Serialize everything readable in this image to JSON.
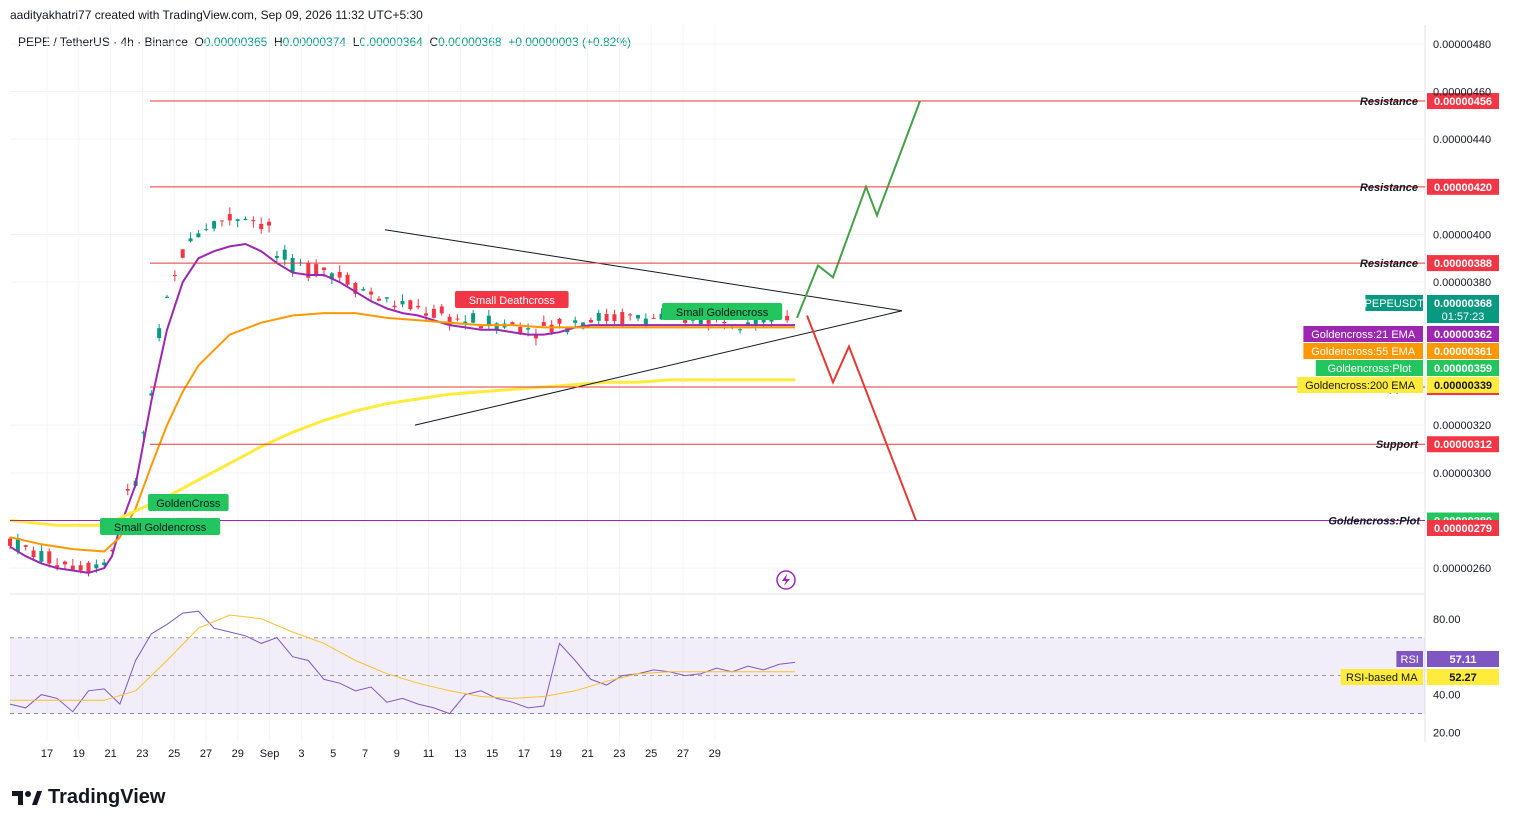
{
  "header": {
    "created_by": "aadityakhatri77 created with TradingView.com, Sep 09, 2026 11:32 UTC+5:30",
    "symbol": "PEPE / TetherUS · 4h · Binance",
    "open_label": "O",
    "open": "0.00000365",
    "high_label": "H",
    "high": "0.00000374",
    "low_label": "L",
    "low": "0.00000364",
    "close_label": "C",
    "close": "0.00000368",
    "change": "+0.00000003 (+0.82%)"
  },
  "brand": {
    "name": "TradingView",
    "icon": "tradingview-logo-icon"
  },
  "colors": {
    "up": "#089981",
    "down": "#f23645",
    "ema21": "#9c27b0",
    "ema55": "#ff9800",
    "ema200": "#ffeb3b",
    "resistance": "#e53935",
    "support": "#e53935",
    "plot": "#22c55e",
    "rsi": "#7e57c2",
    "rsi_ma": "#fbc02d",
    "tag_red": "#f23645"
  },
  "chart_data": [
    {
      "type": "line",
      "title": "",
      "ylim": [
        2.5e-06,
        4.879e-06
      ],
      "y_ticks": [
        "0.00000480",
        "0.00000460",
        "0.00000440",
        "0.00000400",
        "0.00000380",
        "0.00000320",
        "0.00000300",
        "0.00000260"
      ],
      "x_ticks": [
        "17",
        "19",
        "21",
        "23",
        "25",
        "27",
        "29",
        "Sep",
        "3",
        "5",
        "7",
        "9",
        "11",
        "13",
        "15",
        "17",
        "19",
        "21",
        "23",
        "25",
        "27",
        "29"
      ],
      "series": [
        {
          "name": "Goldencross:21 EMA",
          "line": "ema21",
          "x": [
            0,
            1,
            2,
            3,
            4,
            5,
            6,
            6.5,
            7,
            8,
            9,
            10,
            11,
            12,
            13,
            14,
            15,
            16,
            17,
            18,
            19,
            20,
            21,
            22,
            23,
            24,
            25,
            26,
            27,
            28,
            29,
            30,
            31,
            32,
            33,
            34,
            35,
            36,
            37,
            38,
            39,
            40,
            41,
            42,
            43,
            44,
            45,
            46,
            47,
            48,
            49,
            50
          ],
          "y": [
            2.69e-06,
            2.65e-06,
            2.62e-06,
            2.6e-06,
            2.59e-06,
            2.58e-06,
            2.6e-06,
            2.65e-06,
            2.77e-06,
            2.95e-06,
            3.3e-06,
            3.6e-06,
            3.8e-06,
            3.9e-06,
            3.93e-06,
            3.95e-06,
            3.96e-06,
            3.93e-06,
            3.88e-06,
            3.84e-06,
            3.83e-06,
            3.83e-06,
            3.8e-06,
            3.76e-06,
            3.72e-06,
            3.69e-06,
            3.67e-06,
            3.66e-06,
            3.64e-06,
            3.62e-06,
            3.61e-06,
            3.6e-06,
            3.6e-06,
            3.59e-06,
            3.58e-06,
            3.58e-06,
            3.59e-06,
            3.61e-06,
            3.62e-06,
            3.62e-06,
            3.62e-06,
            3.62e-06,
            3.62e-06,
            3.62e-06,
            3.62e-06,
            3.62e-06,
            3.62e-06,
            3.62e-06,
            3.62e-06,
            3.62e-06,
            3.62e-06,
            3.62e-06
          ]
        },
        {
          "name": "Goldencross:55 EMA",
          "line": "ema55",
          "x": [
            0,
            2,
            4,
            6,
            7,
            8,
            9,
            10,
            11,
            12,
            14,
            16,
            18,
            20,
            22,
            24,
            26,
            28,
            30,
            32,
            34,
            36,
            38,
            40,
            42,
            44,
            46,
            48,
            50
          ],
          "y": [
            2.73e-06,
            2.7e-06,
            2.68e-06,
            2.67e-06,
            2.73e-06,
            2.85e-06,
            3.03e-06,
            3.2e-06,
            3.34e-06,
            3.45e-06,
            3.58e-06,
            3.63e-06,
            3.66e-06,
            3.67e-06,
            3.67e-06,
            3.65e-06,
            3.64e-06,
            3.63e-06,
            3.62e-06,
            3.62e-06,
            3.61e-06,
            3.61e-06,
            3.61e-06,
            3.61e-06,
            3.61e-06,
            3.61e-06,
            3.61e-06,
            3.61e-06,
            3.61e-06
          ]
        },
        {
          "name": "Goldencross:200 EMA",
          "line": "ema200",
          "x": [
            0,
            3,
            6,
            8,
            10,
            12,
            14,
            16,
            18,
            20,
            22,
            24,
            26,
            28,
            30,
            32,
            34,
            36,
            38,
            40,
            42,
            44,
            46,
            48,
            50
          ],
          "y": [
            2.8e-06,
            2.78e-06,
            2.78e-06,
            2.84e-06,
            2.9e-06,
            2.97e-06,
            3.04e-06,
            3.11e-06,
            3.17e-06,
            3.22e-06,
            3.26e-06,
            3.29e-06,
            3.31e-06,
            3.33e-06,
            3.34e-06,
            3.35e-06,
            3.36e-06,
            3.37e-06,
            3.38e-06,
            3.38e-06,
            3.39e-06,
            3.39e-06,
            3.39e-06,
            3.39e-06,
            3.39e-06
          ]
        }
      ],
      "levels": [
        {
          "label": "Resistance",
          "value": "0.00000456",
          "y": 4.56e-06,
          "kind": "resistance"
        },
        {
          "label": "Resistance",
          "value": "0.00000420",
          "y": 4.2e-06,
          "kind": "resistance"
        },
        {
          "label": "Resistance",
          "value": "0.00000388",
          "y": 3.88e-06,
          "kind": "resistance"
        },
        {
          "label": "Support",
          "value": "0.00000336",
          "y": 3.36e-06,
          "kind": "support"
        },
        {
          "label": "Support",
          "value": "0.00000312",
          "y": 3.12e-06,
          "kind": "support"
        },
        {
          "label": "Goldencross:Plot",
          "value": "0.00000280",
          "y": 2.8e-06,
          "kind": "plot"
        }
      ],
      "axis_tags": [
        {
          "label": "PEPEUSDT",
          "value": "0.00000368",
          "sub": "01:57:23",
          "color": "#089981"
        },
        {
          "label": "Goldencross:21 EMA",
          "value": "0.00000362",
          "color": "#9c27b0"
        },
        {
          "label": "Goldencross:55 EMA",
          "value": "0.00000361",
          "color": "#ff9800"
        },
        {
          "label": "Goldencross:Plot",
          "value": "0.00000359",
          "color": "#22c55e"
        },
        {
          "label": "Goldencross:200 EMA",
          "value": "0.00000339",
          "color": "#ffeb3b"
        },
        {
          "label": "",
          "value": "0.00000279",
          "color": "#f23645"
        }
      ],
      "annotations": [
        "Small Goldencross",
        "GoldenCross",
        "Small Deathcross",
        "Small Goldencross"
      ],
      "legend": "right-axis"
    },
    {
      "type": "line",
      "title": "",
      "ylim": [
        15,
        92
      ],
      "y_ticks": [
        "80.00",
        "40.00",
        "20.00"
      ],
      "band": [
        30,
        70
      ],
      "series": [
        {
          "name": "RSI",
          "value": "57.11",
          "line": "rsi",
          "x": [
            0,
            1,
            2,
            3,
            4,
            5,
            6,
            7,
            8,
            9,
            10,
            11,
            12,
            13,
            14,
            15,
            16,
            17,
            18,
            19,
            20,
            21,
            22,
            23,
            24,
            25,
            26,
            27,
            28,
            29,
            30,
            31,
            32,
            33,
            34,
            35,
            36,
            37,
            38,
            39,
            40,
            41,
            42,
            43,
            44,
            45,
            46,
            47,
            48,
            49,
            50
          ],
          "y": [
            35,
            33,
            40,
            38,
            31,
            42,
            43,
            35,
            58,
            72,
            77,
            83,
            84,
            75,
            73,
            71,
            67,
            70,
            60,
            58,
            48,
            46,
            42,
            44,
            36,
            38,
            35,
            33,
            30,
            40,
            42,
            38,
            36,
            33,
            34,
            67,
            58,
            48,
            45,
            50,
            51,
            53,
            52,
            50,
            51,
            54,
            52,
            55,
            53,
            56,
            57
          ]
        },
        {
          "name": "RSI-based MA",
          "value": "52.27",
          "line": "rsi_ma",
          "x": [
            0,
            2,
            4,
            6,
            8,
            10,
            12,
            14,
            16,
            18,
            20,
            22,
            24,
            26,
            28,
            30,
            32,
            34,
            36,
            38,
            40,
            42,
            44,
            46,
            48,
            50
          ],
          "y": [
            37,
            37,
            37,
            37,
            42,
            58,
            75,
            82,
            80,
            73,
            67,
            58,
            51,
            46,
            42,
            39,
            38,
            39,
            42,
            47,
            51,
            52,
            52,
            52,
            52,
            52
          ]
        }
      ]
    }
  ]
}
